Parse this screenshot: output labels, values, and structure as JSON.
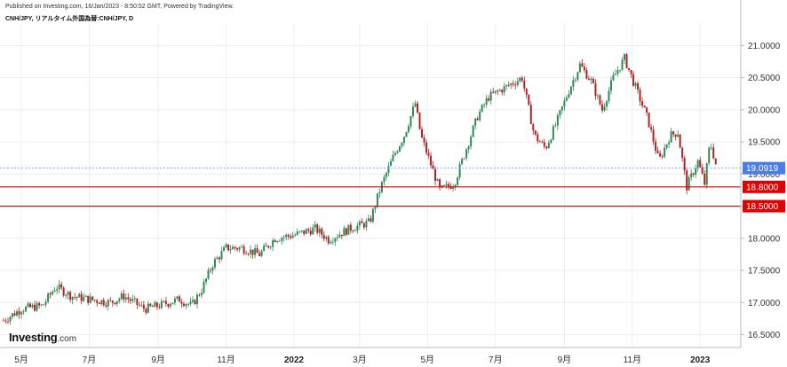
{
  "header": {
    "published": "Published on Investing.com, 16/Jan/2023 - 8:50:52 GMT, Powered by TradingView.",
    "symbol": "CNH/JPY, リアルタイム外国為替:CNH/JPY, D"
  },
  "logo": {
    "main": "Investing",
    "suffix": ".com"
  },
  "colors": {
    "up": "#2e8b57",
    "down": "#b22222",
    "price_tag": "#4a7de8",
    "level_line": "#e00000",
    "current_line": "#7aa7ff",
    "grid": "#eeeeee",
    "axis": "#bbbbbb"
  },
  "chart_data": {
    "type": "candlestick",
    "title": "CNH/JPY",
    "ylim": [
      16.3,
      21.35
    ],
    "y_ticks": [
      "16.5000",
      "17.0000",
      "17.5000",
      "18.0000",
      "18.5000",
      "19.0000",
      "19.5000",
      "20.0000",
      "20.5000",
      "21.0000"
    ],
    "x_labels": [
      "5月",
      "7月",
      "9月",
      "11月",
      "2022",
      "3月",
      "5月",
      "7月",
      "9月",
      "11月",
      "2023"
    ],
    "x_label_positions": [
      "2021-05-01",
      "2021-07-01",
      "2021-09-01",
      "2021-11-01",
      "2022-01-01",
      "2022-03-01",
      "2022-05-01",
      "2022-07-01",
      "2022-09-01",
      "2022-11-01",
      "2023-01-01"
    ],
    "current_price": {
      "label": "19.0919",
      "value": 19.0919
    },
    "levels": [
      {
        "label": "18.8000",
        "value": 18.8
      },
      {
        "label": "18.5000",
        "value": 18.5
      }
    ],
    "price_path": [
      [
        "2021-04-15",
        16.72
      ],
      [
        "2021-05-01",
        16.9
      ],
      [
        "2021-05-20",
        16.95
      ],
      [
        "2021-06-01",
        17.25
      ],
      [
        "2021-06-15",
        17.1
      ],
      [
        "2021-07-01",
        17.05
      ],
      [
        "2021-07-20",
        17.0
      ],
      [
        "2021-08-01",
        17.1
      ],
      [
        "2021-08-20",
        16.9
      ],
      [
        "2021-09-01",
        16.95
      ],
      [
        "2021-09-20",
        17.05
      ],
      [
        "2021-10-01",
        16.95
      ],
      [
        "2021-10-10",
        17.2
      ],
      [
        "2021-10-20",
        17.6
      ],
      [
        "2021-11-01",
        17.85
      ],
      [
        "2021-11-15",
        17.85
      ],
      [
        "2021-12-01",
        17.75
      ],
      [
        "2021-12-15",
        18.0
      ],
      [
        "2022-01-01",
        18.05
      ],
      [
        "2022-01-20",
        18.15
      ],
      [
        "2022-02-01",
        17.98
      ],
      [
        "2022-02-20",
        18.15
      ],
      [
        "2022-03-01",
        18.2
      ],
      [
        "2022-03-10",
        18.25
      ],
      [
        "2022-03-20",
        18.8
      ],
      [
        "2022-04-01",
        19.3
      ],
      [
        "2022-04-10",
        19.6
      ],
      [
        "2022-04-20",
        20.1
      ],
      [
        "2022-04-25",
        19.6
      ],
      [
        "2022-05-01",
        19.3
      ],
      [
        "2022-05-12",
        18.75
      ],
      [
        "2022-05-25",
        18.85
      ],
      [
        "2022-06-05",
        19.4
      ],
      [
        "2022-06-15",
        19.9
      ],
      [
        "2022-06-25",
        20.2
      ],
      [
        "2022-07-05",
        20.3
      ],
      [
        "2022-07-15",
        20.4
      ],
      [
        "2022-07-25",
        20.5
      ],
      [
        "2022-08-05",
        19.6
      ],
      [
        "2022-08-15",
        19.4
      ],
      [
        "2022-08-25",
        19.8
      ],
      [
        "2022-09-05",
        20.3
      ],
      [
        "2022-09-15",
        20.7
      ],
      [
        "2022-09-25",
        20.45
      ],
      [
        "2022-10-05",
        20.0
      ],
      [
        "2022-10-15",
        20.5
      ],
      [
        "2022-10-25",
        20.8
      ],
      [
        "2022-11-05",
        20.3
      ],
      [
        "2022-11-15",
        19.85
      ],
      [
        "2022-11-25",
        19.2
      ],
      [
        "2022-12-05",
        19.6
      ],
      [
        "2022-12-12",
        19.65
      ],
      [
        "2022-12-20",
        18.8
      ],
      [
        "2022-12-30",
        19.2
      ],
      [
        "2023-01-05",
        18.85
      ],
      [
        "2023-01-10",
        19.5
      ],
      [
        "2023-01-16",
        19.09
      ]
    ]
  }
}
